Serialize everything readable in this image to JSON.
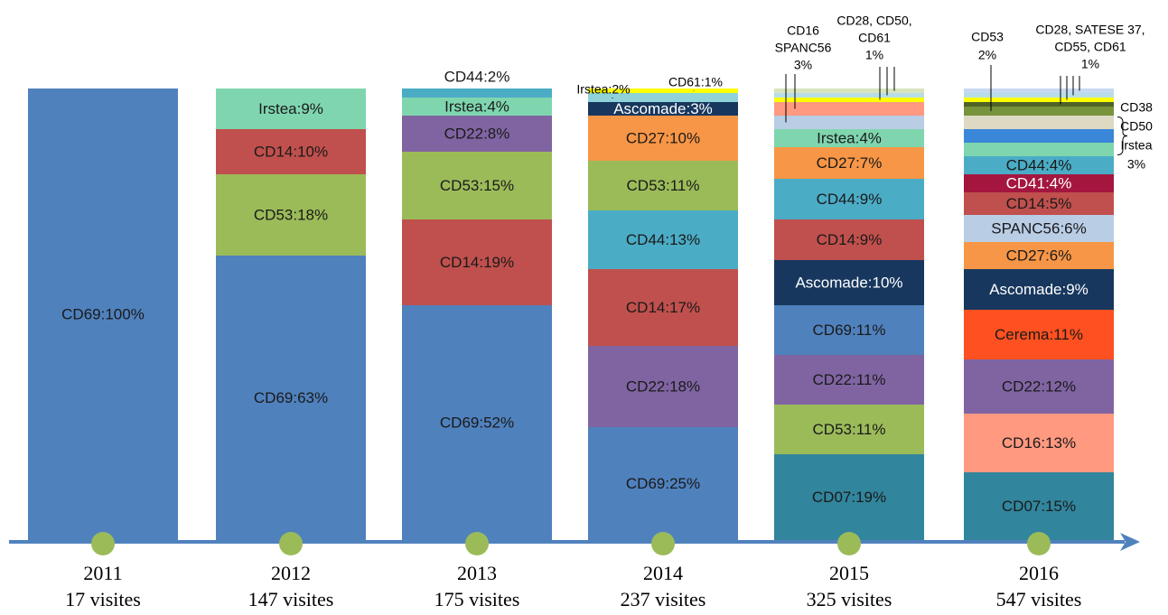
{
  "chart_data": {
    "type": "stacked_column",
    "columns": [
      {
        "year": "2011",
        "visits": "17 visites",
        "segments": [
          {
            "label": "CD69:100%",
            "value": 100,
            "color": "#4f81bd"
          }
        ]
      },
      {
        "year": "2012",
        "visits": "147 visites",
        "segments": [
          {
            "label": "CD69:63%",
            "value": 63,
            "color": "#4f81bd"
          },
          {
            "label": "CD53:18%",
            "value": 18,
            "color": "#9bbb59"
          },
          {
            "label": "CD14:10%",
            "value": 10,
            "color": "#c0504d"
          },
          {
            "label": "Irstea:9%",
            "value": 9,
            "color": "#7fd6ae"
          }
        ]
      },
      {
        "year": "2013",
        "visits": "175 visites",
        "segments": [
          {
            "label": "CD69:52%",
            "value": 52,
            "color": "#4f81bd"
          },
          {
            "label": "CD14:19%",
            "value": 19,
            "color": "#c0504d"
          },
          {
            "label": "CD53:15%",
            "value": 15,
            "color": "#9bbb59"
          },
          {
            "label": "CD22:8%",
            "value": 8,
            "color": "#8064a2"
          },
          {
            "label": "Irstea:4%",
            "value": 4,
            "color": "#7fd6ae"
          },
          {
            "label": "CD44:2%",
            "value": 2,
            "color": "#4bacc6"
          }
        ]
      },
      {
        "year": "2014",
        "visits": "237 visites",
        "segments": [
          {
            "label": "CD69:25%",
            "value": 25,
            "color": "#4f81bd"
          },
          {
            "label": "CD22:18%",
            "value": 18,
            "color": "#8064a2"
          },
          {
            "label": "CD14:17%",
            "value": 17,
            "color": "#c0504d"
          },
          {
            "label": "CD44:13%",
            "value": 13,
            "color": "#4bacc6"
          },
          {
            "label": "CD53:11%",
            "value": 11,
            "color": "#9bbb59"
          },
          {
            "label": "CD27:10%",
            "value": 10,
            "color": "#f79646"
          },
          {
            "label": "Ascomade:3%",
            "value": 3,
            "color": "#17375e"
          },
          {
            "value": 2,
            "color": "#8fd3d8"
          },
          {
            "value": 1,
            "color": "#ffff00"
          }
        ],
        "callouts": [
          {
            "lines": [
              "Irstea:2%"
            ]
          },
          {
            "lines": [
              "CD61:1%"
            ]
          }
        ]
      },
      {
        "year": "2015",
        "visits": "325 visites",
        "segments": [
          {
            "label": "CD07:19%",
            "value": 19,
            "color": "#31859c"
          },
          {
            "label": "CD53:11%",
            "value": 11,
            "color": "#9bbb59"
          },
          {
            "label": "CD22:11%",
            "value": 11,
            "color": "#8064a2"
          },
          {
            "label": "CD69:11%",
            "value": 11,
            "color": "#4f81bd"
          },
          {
            "label": "Ascomade:10%",
            "value": 10,
            "color": "#17375e"
          },
          {
            "label": "CD14:9%",
            "value": 9,
            "color": "#c0504d"
          },
          {
            "label": "CD44:9%",
            "value": 9,
            "color": "#4bacc6"
          },
          {
            "label": "CD27:7%",
            "value": 7,
            "color": "#f79646"
          },
          {
            "label": "Irstea:4%",
            "value": 4,
            "color": "#7fd6ae"
          },
          {
            "value": 3,
            "color": "#b9cde5"
          },
          {
            "value": 3,
            "color": "#ff9980"
          },
          {
            "value": 1,
            "color": "#ffff00"
          },
          {
            "value": 1,
            "color": "#b7dee8"
          },
          {
            "value": 1,
            "color": "#d7e4bd"
          }
        ],
        "callouts": [
          {
            "lines": [
              "CD16",
              "SPANC56",
              "3%"
            ]
          },
          {
            "lines": [
              "CD28, CD50,",
              "CD61",
              "1%"
            ]
          }
        ]
      },
      {
        "year": "2016",
        "visits": "547 visites",
        "segments": [
          {
            "label": "CD07:15%",
            "value": 15,
            "color": "#31859c"
          },
          {
            "label": "CD16:13%",
            "value": 13,
            "color": "#ff9980"
          },
          {
            "label": "CD22:12%",
            "value": 12,
            "color": "#8064a2"
          },
          {
            "label": "Cerema:11%",
            "value": 11,
            "color": "#fe5020"
          },
          {
            "label": "Ascomade:9%",
            "value": 9,
            "color": "#17375e"
          },
          {
            "label": "CD27:6%",
            "value": 6,
            "color": "#f79646"
          },
          {
            "label": "SPANC56:6%",
            "value": 6,
            "color": "#b9cde5"
          },
          {
            "label": "CD14:5%",
            "value": 5,
            "color": "#c0504d"
          },
          {
            "label": "CD41:4%",
            "value": 4,
            "color": "#a5163e"
          },
          {
            "label": "CD44:4%",
            "value": 4,
            "color": "#4bacc6"
          },
          {
            "value": 3,
            "color": "#7fd6ae"
          },
          {
            "value": 3,
            "color": "#3a86d9"
          },
          {
            "value": 3,
            "color": "#ddd9c3"
          },
          {
            "value": 2,
            "color": "#77933c"
          },
          {
            "value": 1,
            "color": "#4f6228"
          },
          {
            "value": 1,
            "color": "#ffff00"
          },
          {
            "value": 1,
            "color": "#b7dee8"
          },
          {
            "value": 1,
            "color": "#c6d9f1"
          }
        ],
        "callouts": [
          {
            "lines": [
              "CD53",
              "2%"
            ]
          },
          {
            "lines": [
              "CD28, SATESE 37,",
              "CD55, CD61",
              "1%"
            ]
          },
          {
            "lines": [
              "CD38",
              "CD50",
              "Irstea",
              "3%"
            ]
          }
        ]
      }
    ]
  }
}
